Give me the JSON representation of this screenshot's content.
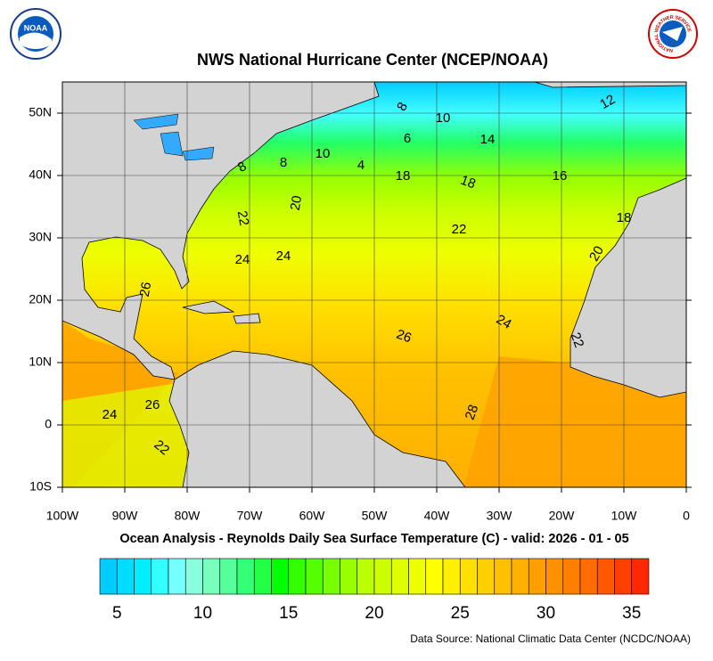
{
  "header": {
    "title": "NWS National Hurricane Center (NCEP/NOAA)",
    "noaa_logo": "NOAA",
    "nws_logo": "NATIONAL WEATHER SERVICE"
  },
  "map": {
    "lon_range": [
      -100,
      0
    ],
    "lat_range": [
      -10,
      55
    ],
    "lon_ticks": [
      {
        "value": -100,
        "label": "100W"
      },
      {
        "value": -90,
        "label": "90W"
      },
      {
        "value": -80,
        "label": "80W"
      },
      {
        "value": -70,
        "label": "70W"
      },
      {
        "value": -60,
        "label": "60W"
      },
      {
        "value": -50,
        "label": "50W"
      },
      {
        "value": -40,
        "label": "40W"
      },
      {
        "value": -30,
        "label": "30W"
      },
      {
        "value": -20,
        "label": "20W"
      },
      {
        "value": -10,
        "label": "10W"
      },
      0
    ],
    "lat_ticks": [
      {
        "value": -10,
        "label": "10S"
      },
      0,
      {
        "value": 10,
        "label": "10N"
      },
      {
        "value": 20,
        "label": "20N"
      },
      {
        "value": 30,
        "label": "30N"
      },
      {
        "value": 40,
        "label": "40N"
      },
      {
        "value": 50,
        "label": "50N"
      }
    ],
    "contour_labels": [
      "8",
      "10",
      "12",
      "6",
      "14",
      "8",
      "8",
      "10",
      "4",
      "18",
      "18",
      "16",
      "20",
      "22",
      "22",
      "18",
      "24",
      "24",
      "20",
      "26",
      "24",
      "26",
      "22",
      "24",
      "26",
      "22",
      "28"
    ]
  },
  "caption": "Ocean Analysis - Reynolds Daily Sea Surface Temperature (C) - valid: 2026 - 01 - 05",
  "colorbar": {
    "range": [
      4,
      36
    ],
    "ticks": [
      5,
      10,
      15,
      20,
      25,
      30,
      35
    ],
    "colors": [
      "#00ccff",
      "#00ddff",
      "#00eeff",
      "#33ffff",
      "#77ffff",
      "#88ffdd",
      "#77ffbb",
      "#55ff99",
      "#33ff77",
      "#22ff44",
      "#00ff00",
      "#33ff00",
      "#55ff00",
      "#77ff00",
      "#99ff00",
      "#bbff00",
      "#ccff00",
      "#ddff00",
      "#eeff00",
      "#ffff00",
      "#fff000",
      "#ffe000",
      "#ffd000",
      "#ffc000",
      "#ffb000",
      "#ffa000",
      "#ff9000",
      "#ff8000",
      "#ff6c00",
      "#ff5800",
      "#ff4000",
      "#ff2800"
    ]
  },
  "source": "Data Source: National Climatic Data Center (NCDC/NOAA)"
}
